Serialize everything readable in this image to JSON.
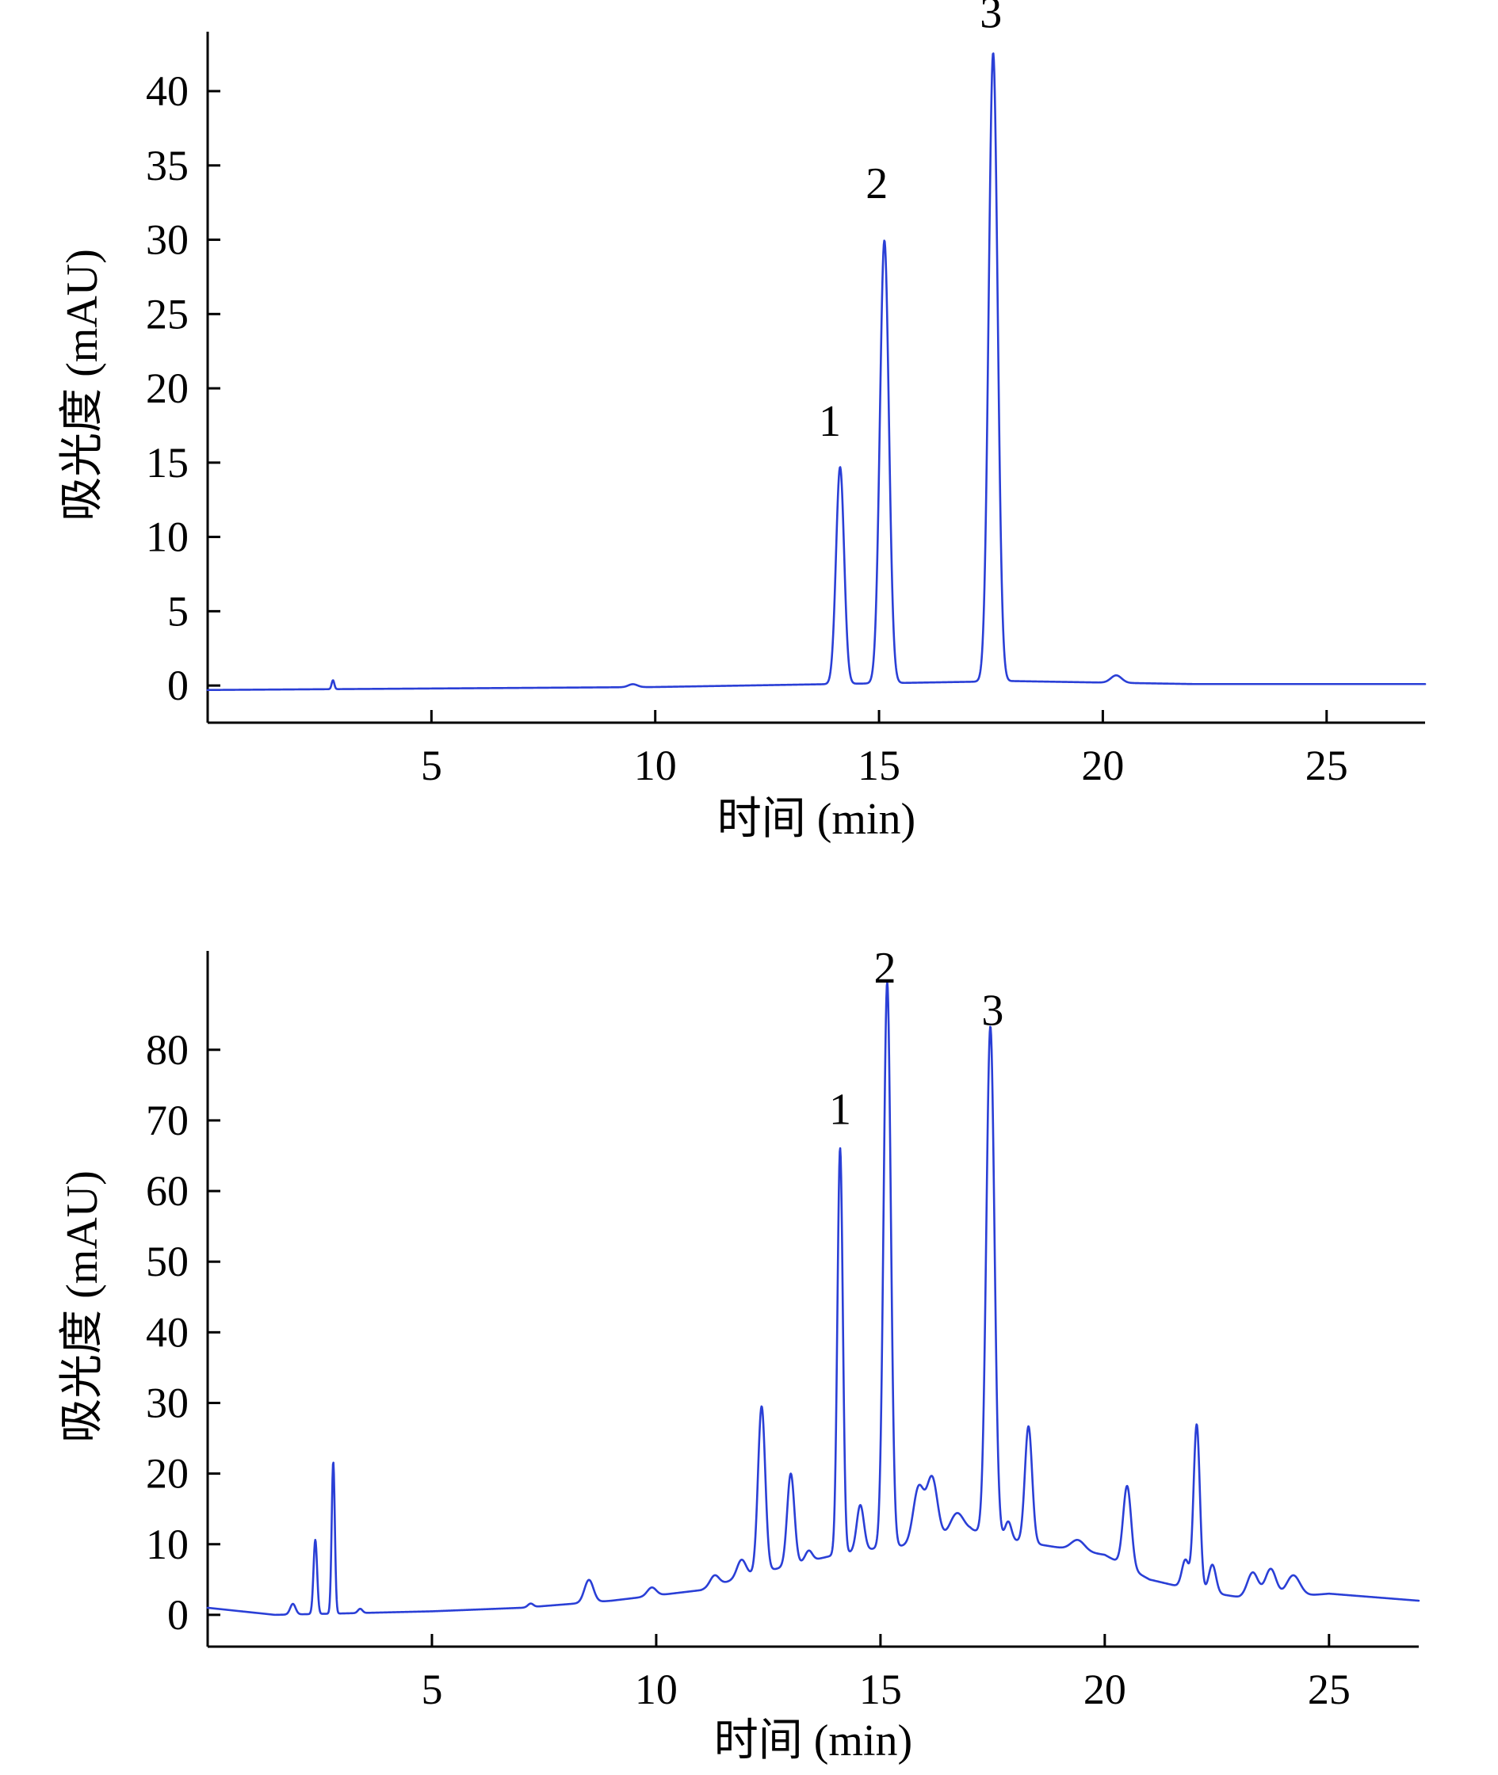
{
  "chart_data": [
    {
      "type": "line",
      "xlabel": "时间 (min)",
      "ylabel": "吸光度 (mAU)",
      "xlim": [
        0,
        27.2
      ],
      "ylim": [
        -2.5,
        44
      ],
      "x_ticks": [
        5,
        10,
        15,
        20,
        25
      ],
      "y_ticks": [
        0,
        5,
        10,
        15,
        20,
        25,
        30,
        35,
        40
      ],
      "grid": false,
      "line_color": "#2a3fd6",
      "series": [
        {
          "baseline": [
            [
              0,
              -0.3
            ],
            [
              5,
              -0.2
            ],
            [
              10,
              -0.1
            ],
            [
              12,
              0.0
            ],
            [
              14,
              0.1
            ],
            [
              16,
              0.2
            ],
            [
              18,
              0.3
            ],
            [
              20,
              0.2
            ],
            [
              22,
              0.1
            ],
            [
              27.2,
              0.1
            ]
          ],
          "peaks": [
            {
              "x": 2.8,
              "height": 0.6,
              "width": 0.03
            },
            {
              "x": 9.5,
              "height": 0.2,
              "width": 0.1
            },
            {
              "x": 14.13,
              "height": 14.6,
              "width": 0.09
            },
            {
              "x": 15.12,
              "height": 29.8,
              "width": 0.1
            },
            {
              "x": 17.55,
              "height": 42.3,
              "width": 0.1
            },
            {
              "x": 20.3,
              "height": 0.5,
              "width": 0.12
            }
          ]
        }
      ],
      "annotations": [
        {
          "text": "1",
          "x": 13.9,
          "y": 16.8
        },
        {
          "text": "2",
          "x": 14.95,
          "y": 32.8
        },
        {
          "text": "3",
          "x": 17.5,
          "y": 44.3
        }
      ]
    },
    {
      "type": "line",
      "xlabel": "时间 (min)",
      "ylabel": "吸光度 (mAU)",
      "xlim": [
        0,
        27.0
      ],
      "ylim": [
        -4.5,
        94
      ],
      "x_ticks": [
        5,
        10,
        15,
        20,
        25
      ],
      "y_ticks": [
        0,
        10,
        20,
        30,
        40,
        50,
        60,
        70,
        80
      ],
      "grid": false,
      "line_color": "#2a3fd6",
      "series": [
        {
          "baseline": [
            [
              0,
              1.0
            ],
            [
              1.5,
              0.0
            ],
            [
              3,
              0.2
            ],
            [
              5,
              0.5
            ],
            [
              7,
              1.0
            ],
            [
              9,
              2.0
            ],
            [
              11,
              3.5
            ],
            [
              12,
              5.5
            ],
            [
              13,
              7.0
            ],
            [
              14,
              8.5
            ],
            [
              15,
              9.5
            ],
            [
              16,
              10.0
            ],
            [
              17,
              12.0
            ],
            [
              18,
              10.5
            ],
            [
              19,
              9.5
            ],
            [
              20,
              8.5
            ],
            [
              21,
              5.0
            ],
            [
              22,
              3.5
            ],
            [
              23,
              2.5
            ],
            [
              24,
              2.5
            ],
            [
              25,
              3.0
            ],
            [
              26,
              2.5
            ],
            [
              27,
              2.0
            ]
          ],
          "peaks": [
            {
              "x": 1.9,
              "height": 1.5,
              "width": 0.06
            },
            {
              "x": 2.4,
              "height": 10.5,
              "width": 0.04
            },
            {
              "x": 2.8,
              "height": 21.5,
              "width": 0.035
            },
            {
              "x": 3.4,
              "height": 0.6,
              "width": 0.05
            },
            {
              "x": 7.2,
              "height": 0.5,
              "width": 0.06
            },
            {
              "x": 8.5,
              "height": 3.2,
              "width": 0.1
            },
            {
              "x": 9.9,
              "height": 1.2,
              "width": 0.1
            },
            {
              "x": 11.3,
              "height": 1.5,
              "width": 0.1
            },
            {
              "x": 11.9,
              "height": 2.5,
              "width": 0.1
            },
            {
              "x": 12.35,
              "height": 23.5,
              "width": 0.08
            },
            {
              "x": 13.0,
              "height": 13.0,
              "width": 0.08
            },
            {
              "x": 13.4,
              "height": 1.5,
              "width": 0.08
            },
            {
              "x": 14.1,
              "height": 57.5,
              "width": 0.06
            },
            {
              "x": 14.55,
              "height": 6.5,
              "width": 0.08
            },
            {
              "x": 15.15,
              "height": 80.0,
              "width": 0.08
            },
            {
              "x": 15.85,
              "height": 8.0,
              "width": 0.12
            },
            {
              "x": 16.15,
              "height": 9.0,
              "width": 0.12
            },
            {
              "x": 16.7,
              "height": 3.0,
              "width": 0.15
            },
            {
              "x": 17.45,
              "height": 72.0,
              "width": 0.09
            },
            {
              "x": 17.85,
              "height": 2.5,
              "width": 0.07
            },
            {
              "x": 18.3,
              "height": 16.5,
              "width": 0.08
            },
            {
              "x": 19.4,
              "height": 1.5,
              "width": 0.15
            },
            {
              "x": 20.5,
              "height": 11.5,
              "width": 0.09
            },
            {
              "x": 21.8,
              "height": 4.0,
              "width": 0.08
            },
            {
              "x": 22.05,
              "height": 23.5,
              "width": 0.07
            },
            {
              "x": 22.4,
              "height": 4.0,
              "width": 0.08
            },
            {
              "x": 23.3,
              "height": 3.5,
              "width": 0.12
            },
            {
              "x": 23.7,
              "height": 4.0,
              "width": 0.12
            },
            {
              "x": 24.2,
              "height": 3.0,
              "width": 0.15
            }
          ]
        }
      ],
      "annotations": [
        {
          "text": "1",
          "x": 14.1,
          "y": 69.5
        },
        {
          "text": "2",
          "x": 15.1,
          "y": 89.5
        },
        {
          "text": "3",
          "x": 17.5,
          "y": 83.5
        }
      ]
    }
  ]
}
